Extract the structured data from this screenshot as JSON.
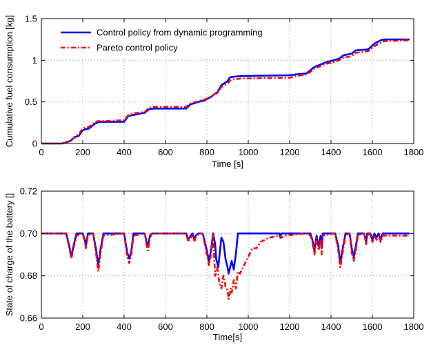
{
  "chart_data": [
    {
      "type": "line",
      "xlabel": "Time [s]",
      "ylabel": "Cumulative fuel consumption [kg]",
      "xlim": [
        0,
        1800
      ],
      "ylim": [
        0,
        1.5
      ],
      "xticks": [
        0,
        200,
        400,
        600,
        800,
        1000,
        1200,
        1400,
        1600,
        1800
      ],
      "yticks": [
        0,
        0.5,
        1,
        1.5
      ],
      "grid": true,
      "legend_position": "top-left",
      "series": [
        {
          "name": "Control policy from dynamic programming",
          "color": "#0000ff",
          "style": "solid",
          "x": [
            0,
            100,
            140,
            165,
            180,
            200,
            210,
            230,
            260,
            280,
            300,
            400,
            420,
            440,
            500,
            520,
            540,
            700,
            720,
            760,
            790,
            820,
            840,
            850,
            870,
            900,
            910,
            920,
            960,
            1200,
            1230,
            1280,
            1300,
            1320,
            1350,
            1380,
            1400,
            1440,
            1460,
            1500,
            1520,
            1580,
            1610,
            1640,
            1660,
            1780
          ],
          "y": [
            0,
            0,
            0.03,
            0.08,
            0.09,
            0.16,
            0.17,
            0.18,
            0.24,
            0.26,
            0.26,
            0.26,
            0.33,
            0.34,
            0.37,
            0.41,
            0.42,
            0.42,
            0.47,
            0.5,
            0.52,
            0.56,
            0.6,
            0.61,
            0.7,
            0.75,
            0.79,
            0.8,
            0.81,
            0.82,
            0.83,
            0.84,
            0.88,
            0.92,
            0.95,
            0.98,
            0.99,
            1.02,
            1.06,
            1.08,
            1.12,
            1.13,
            1.2,
            1.24,
            1.25,
            1.25
          ]
        },
        {
          "name": "Pareto control policy",
          "color": "#ff0000",
          "style": "dash-dot",
          "x": [
            0,
            100,
            140,
            165,
            180,
            200,
            210,
            230,
            260,
            280,
            300,
            400,
            420,
            440,
            500,
            520,
            540,
            700,
            720,
            760,
            790,
            820,
            840,
            850,
            870,
            900,
            910,
            920,
            960,
            1200,
            1230,
            1280,
            1300,
            1320,
            1350,
            1380,
            1400,
            1440,
            1460,
            1500,
            1520,
            1580,
            1610,
            1640,
            1660,
            1780
          ],
          "y": [
            0,
            0,
            0.03,
            0.09,
            0.11,
            0.18,
            0.19,
            0.2,
            0.26,
            0.27,
            0.27,
            0.28,
            0.34,
            0.36,
            0.38,
            0.43,
            0.44,
            0.44,
            0.48,
            0.51,
            0.53,
            0.56,
            0.6,
            0.6,
            0.68,
            0.72,
            0.75,
            0.77,
            0.78,
            0.79,
            0.81,
            0.83,
            0.86,
            0.9,
            0.93,
            0.96,
            0.97,
            1.0,
            1.03,
            1.05,
            1.09,
            1.11,
            1.17,
            1.21,
            1.23,
            1.24
          ]
        }
      ]
    },
    {
      "type": "line",
      "xlabel": "Time[s]",
      "ylabel": "State of charge of the battery []",
      "xlim": [
        0,
        1800
      ],
      "ylim": [
        0.66,
        0.72
      ],
      "xticks": [
        0,
        200,
        400,
        600,
        800,
        1000,
        1200,
        1400,
        1600,
        1800
      ],
      "yticks": [
        0.66,
        0.68,
        0.7,
        0.72
      ],
      "grid": true,
      "series": [
        {
          "name": "Control policy from dynamic programming",
          "color": "#0000ff",
          "style": "solid",
          "x": [
            0,
            120,
            135,
            145,
            155,
            170,
            200,
            210,
            215,
            225,
            250,
            265,
            275,
            285,
            300,
            400,
            415,
            425,
            435,
            445,
            500,
            510,
            515,
            525,
            535,
            700,
            710,
            715,
            730,
            740,
            745,
            760,
            780,
            800,
            810,
            820,
            830,
            840,
            845,
            855,
            870,
            880,
            890,
            900,
            905,
            910,
            920,
            930,
            940,
            950,
            1000,
            1150,
            1155,
            1160,
            1280,
            1300,
            1310,
            1320,
            1330,
            1340,
            1350,
            1355,
            1360,
            1420,
            1435,
            1445,
            1455,
            1470,
            1490,
            1500,
            1510,
            1520,
            1530,
            1560,
            1570,
            1575,
            1590,
            1600,
            1610,
            1620,
            1630,
            1640,
            1650,
            1780
          ],
          "y": [
            0.7,
            0.7,
            0.694,
            0.689,
            0.694,
            0.7,
            0.7,
            0.697,
            0.694,
            0.7,
            0.7,
            0.692,
            0.685,
            0.692,
            0.7,
            0.7,
            0.691,
            0.688,
            0.692,
            0.7,
            0.7,
            0.695,
            0.694,
            0.699,
            0.7,
            0.7,
            0.697,
            0.698,
            0.7,
            0.697,
            0.699,
            0.7,
            0.7,
            0.692,
            0.687,
            0.692,
            0.7,
            0.695,
            0.688,
            0.684,
            0.698,
            0.696,
            0.688,
            0.684,
            0.681,
            0.683,
            0.687,
            0.683,
            0.69,
            0.7,
            0.7,
            0.7,
            0.698,
            0.7,
            0.7,
            0.7,
            0.697,
            0.692,
            0.699,
            0.694,
            0.699,
            0.693,
            0.7,
            0.7,
            0.694,
            0.686,
            0.692,
            0.7,
            0.7,
            0.693,
            0.689,
            0.694,
            0.7,
            0.7,
            0.696,
            0.7,
            0.7,
            0.697,
            0.7,
            0.698,
            0.7,
            0.697,
            0.7,
            0.7
          ]
        },
        {
          "name": "Pareto control policy",
          "color": "#ff0000",
          "style": "dash-dot",
          "x": [
            0,
            120,
            135,
            145,
            155,
            170,
            200,
            210,
            215,
            225,
            250,
            265,
            275,
            285,
            300,
            400,
            415,
            425,
            435,
            445,
            500,
            510,
            515,
            525,
            535,
            700,
            710,
            715,
            730,
            740,
            745,
            760,
            780,
            800,
            810,
            820,
            830,
            840,
            850,
            860,
            870,
            880,
            890,
            900,
            905,
            910,
            915,
            920,
            930,
            940,
            950,
            960,
            980,
            1000,
            1020,
            1040,
            1060,
            1080,
            1100,
            1150,
            1160,
            1180,
            1280,
            1300,
            1310,
            1320,
            1330,
            1340,
            1350,
            1355,
            1360,
            1420,
            1435,
            1445,
            1455,
            1470,
            1490,
            1500,
            1510,
            1520,
            1530,
            1560,
            1570,
            1575,
            1590,
            1600,
            1610,
            1620,
            1630,
            1640,
            1650,
            1780
          ],
          "y": [
            0.7,
            0.7,
            0.693,
            0.688,
            0.693,
            0.699,
            0.7,
            0.696,
            0.693,
            0.699,
            0.7,
            0.69,
            0.682,
            0.69,
            0.699,
            0.7,
            0.689,
            0.686,
            0.69,
            0.699,
            0.7,
            0.694,
            0.692,
            0.698,
            0.7,
            0.7,
            0.696,
            0.697,
            0.699,
            0.696,
            0.698,
            0.7,
            0.7,
            0.69,
            0.685,
            0.69,
            0.699,
            0.68,
            0.684,
            0.677,
            0.674,
            0.68,
            0.675,
            0.673,
            0.669,
            0.671,
            0.674,
            0.672,
            0.678,
            0.674,
            0.682,
            0.681,
            0.685,
            0.689,
            0.693,
            0.693,
            0.696,
            0.697,
            0.698,
            0.699,
            0.698,
            0.699,
            0.7,
            0.699,
            0.696,
            0.69,
            0.698,
            0.692,
            0.697,
            0.69,
            0.699,
            0.7,
            0.692,
            0.684,
            0.69,
            0.699,
            0.7,
            0.691,
            0.687,
            0.692,
            0.699,
            0.7,
            0.695,
            0.699,
            0.7,
            0.696,
            0.699,
            0.697,
            0.699,
            0.696,
            0.699,
            0.699
          ]
        }
      ]
    }
  ]
}
